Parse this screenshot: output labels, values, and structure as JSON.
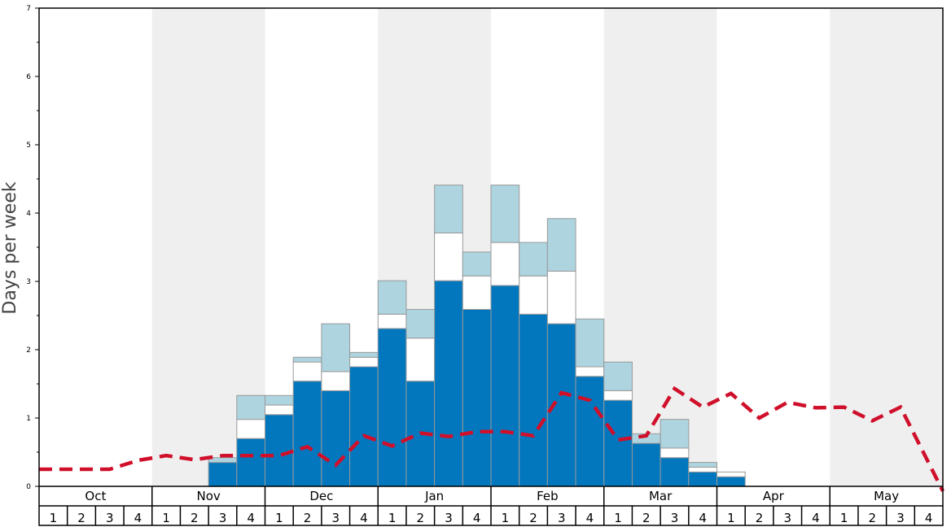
{
  "chart_data": {
    "type": "bar",
    "ylabel": "Days per week",
    "xlabel": "",
    "title": "",
    "ylim": [
      0,
      7
    ],
    "y_ticks": [
      0,
      1,
      2,
      3,
      4,
      5,
      6,
      7
    ],
    "months": [
      "Oct",
      "Nov",
      "Dec",
      "Jan",
      "Feb",
      "Mar",
      "Apr",
      "May"
    ],
    "week_labels": [
      "1",
      "2",
      "3",
      "4"
    ],
    "colors": {
      "base": "#0277bd",
      "middle": "#ffffff",
      "top": "#aed4e0",
      "line": "#d0102b",
      "shade": "#efefef",
      "bar_edge": "#999999"
    },
    "stack_order": [
      "base",
      "middle",
      "top"
    ],
    "series": [
      {
        "key": "base",
        "values": [
          0,
          0,
          0,
          0,
          0,
          0,
          0.35,
          0.7,
          1.05,
          1.54,
          1.4,
          1.75,
          2.31,
          1.54,
          3.01,
          2.59,
          2.94,
          2.52,
          2.38,
          1.61,
          1.26,
          0.63,
          0.42,
          0.21,
          0.14,
          0,
          0,
          0,
          0,
          0,
          0,
          0
        ]
      },
      {
        "key": "middle",
        "values": [
          0,
          0,
          0,
          0,
          0,
          0,
          0,
          0.28,
          0.14,
          0.28,
          0.28,
          0.14,
          0.21,
          0.63,
          0.7,
          0.49,
          0.63,
          0.56,
          0.77,
          0.14,
          0.14,
          0,
          0.14,
          0.07,
          0.07,
          0,
          0,
          0,
          0,
          0,
          0,
          0
        ]
      },
      {
        "key": "top",
        "values": [
          0,
          0,
          0,
          0,
          0,
          0,
          0.07,
          0.35,
          0.14,
          0.07,
          0.7,
          0.07,
          0.49,
          0.42,
          0.7,
          0.35,
          0.84,
          0.49,
          0.77,
          0.7,
          0.42,
          0.14,
          0.42,
          0.07,
          0,
          0,
          0,
          0,
          0,
          0,
          0,
          0
        ]
      },
      {
        "key": "line",
        "values": [
          0.25,
          0.25,
          0.25,
          0.38,
          0.45,
          0.39,
          0.45,
          0.45,
          0.45,
          0.58,
          0.31,
          0.74,
          0.59,
          0.78,
          0.73,
          0.8,
          0.8,
          0.74,
          1.37,
          1.26,
          0.68,
          0.74,
          1.43,
          1.16,
          1.36,
          1.0,
          1.23,
          1.15,
          1.16,
          0.96,
          1.16,
          0.34
        ]
      }
    ]
  }
}
